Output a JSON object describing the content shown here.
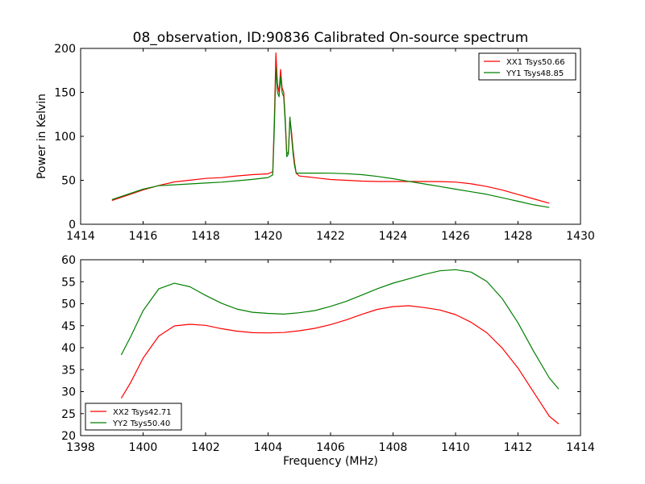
{
  "chart_data": [
    {
      "type": "line",
      "title": "08_observation, ID:90836 Calibrated On-source spectrum",
      "xlabel": "",
      "ylabel": "Power in Kelvin",
      "xlim": [
        1414,
        1430
      ],
      "ylim": [
        0,
        200
      ],
      "xticks": [
        "1414",
        "1416",
        "1418",
        "1420",
        "1422",
        "1424",
        "1426",
        "1428",
        "1430"
      ],
      "yticks": [
        "0",
        "50",
        "100",
        "150",
        "200"
      ],
      "legend_position": "top-right",
      "series": [
        {
          "name": "XX1 Tsys50.66",
          "color": "#ff0000",
          "x": [
            1415.0,
            1415.5,
            1416.0,
            1416.5,
            1417.0,
            1417.5,
            1418.0,
            1418.5,
            1419.0,
            1419.5,
            1420.0,
            1420.15,
            1420.2,
            1420.25,
            1420.3,
            1420.35,
            1420.4,
            1420.45,
            1420.5,
            1420.55,
            1420.6,
            1420.65,
            1420.7,
            1420.75,
            1420.8,
            1420.85,
            1420.9,
            1421.0,
            1421.5,
            1422.0,
            1422.5,
            1423.0,
            1423.5,
            1424.0,
            1424.5,
            1425.0,
            1425.5,
            1426.0,
            1426.5,
            1427.0,
            1427.5,
            1428.0,
            1428.5,
            1429.0
          ],
          "values": [
            27,
            33,
            39,
            44,
            48,
            50,
            52,
            53,
            55,
            56.5,
            57.5,
            60,
            120,
            195,
            160,
            150,
            176,
            155,
            150,
            120,
            80,
            82,
            120,
            105,
            85,
            70,
            58,
            55,
            53,
            51,
            50,
            49,
            48.5,
            48.5,
            48.5,
            48.5,
            48.5,
            48,
            46,
            43,
            39,
            34,
            29,
            24
          ]
        },
        {
          "name": "YY1 Tsys48.85",
          "color": "#008000",
          "x": [
            1415.0,
            1415.5,
            1416.0,
            1416.5,
            1417.0,
            1417.5,
            1418.0,
            1418.5,
            1419.0,
            1419.5,
            1420.0,
            1420.15,
            1420.2,
            1420.25,
            1420.3,
            1420.35,
            1420.4,
            1420.45,
            1420.5,
            1420.55,
            1420.6,
            1420.65,
            1420.7,
            1420.75,
            1420.8,
            1420.85,
            1420.9,
            1421.0,
            1421.5,
            1422.0,
            1422.5,
            1423.0,
            1423.5,
            1424.0,
            1424.5,
            1425.0,
            1425.5,
            1426.0,
            1426.5,
            1427.0,
            1427.5,
            1428.0,
            1428.5,
            1429.0
          ],
          "values": [
            28,
            34,
            40,
            44,
            45,
            46,
            47,
            48,
            49.5,
            51,
            53,
            56,
            110,
            178,
            150,
            145,
            168,
            150,
            145,
            115,
            77,
            80,
            122,
            100,
            80,
            66,
            58,
            58,
            58,
            58,
            57.5,
            56.5,
            54.5,
            52,
            49,
            46,
            43,
            40,
            37,
            34,
            30,
            26,
            22,
            19
          ]
        }
      ]
    },
    {
      "type": "line",
      "title": "",
      "xlabel": "Frequency (MHz)",
      "ylabel": "",
      "xlim": [
        1398,
        1414
      ],
      "ylim": [
        20,
        60
      ],
      "xticks": [
        "1398",
        "1400",
        "1402",
        "1404",
        "1406",
        "1408",
        "1410",
        "1412",
        "1414"
      ],
      "yticks": [
        "20",
        "25",
        "30",
        "35",
        "40",
        "45",
        "50",
        "55",
        "60"
      ],
      "legend_position": "bottom-left",
      "series": [
        {
          "name": "XX2 Tsys42.71",
          "color": "#ff0000",
          "x": [
            1399.3,
            1399.6,
            1400.0,
            1400.5,
            1401.0,
            1401.5,
            1402.0,
            1402.5,
            1403.0,
            1403.5,
            1404.0,
            1404.5,
            1405.0,
            1405.5,
            1406.0,
            1406.5,
            1407.0,
            1407.5,
            1408.0,
            1408.5,
            1409.0,
            1409.5,
            1410.0,
            1410.5,
            1411.0,
            1411.5,
            1412.0,
            1412.5,
            1413.0,
            1413.3
          ],
          "values": [
            28.5,
            32,
            37.5,
            42.5,
            44.8,
            45.2,
            45,
            44.3,
            43.8,
            43.5,
            43.5,
            43.6,
            44,
            44.5,
            45.3,
            46.3,
            47.5,
            48.6,
            49.2,
            49.4,
            49,
            48.5,
            47.5,
            45.8,
            43.5,
            40,
            35.5,
            30,
            24.5,
            22.7
          ]
        },
        {
          "name": "YY2 Tsys50.40",
          "color": "#008000",
          "x": [
            1399.3,
            1399.6,
            1400.0,
            1400.5,
            1401.0,
            1401.5,
            1402.0,
            1402.5,
            1403.0,
            1403.5,
            1404.0,
            1404.5,
            1405.0,
            1405.5,
            1406.0,
            1406.5,
            1407.0,
            1407.5,
            1408.0,
            1408.5,
            1409.0,
            1409.5,
            1410.0,
            1410.5,
            1411.0,
            1411.5,
            1412.0,
            1412.5,
            1413.0,
            1413.3
          ],
          "values": [
            38.3,
            42.5,
            48.5,
            53.5,
            54.8,
            54,
            52,
            50.2,
            48.8,
            48,
            47.7,
            47.5,
            47.8,
            48.3,
            49.3,
            50.5,
            52,
            53.5,
            54.8,
            55.8,
            56.8,
            57.6,
            57.8,
            57.2,
            55,
            51,
            45.5,
            39,
            33,
            30.5
          ]
        }
      ]
    }
  ]
}
